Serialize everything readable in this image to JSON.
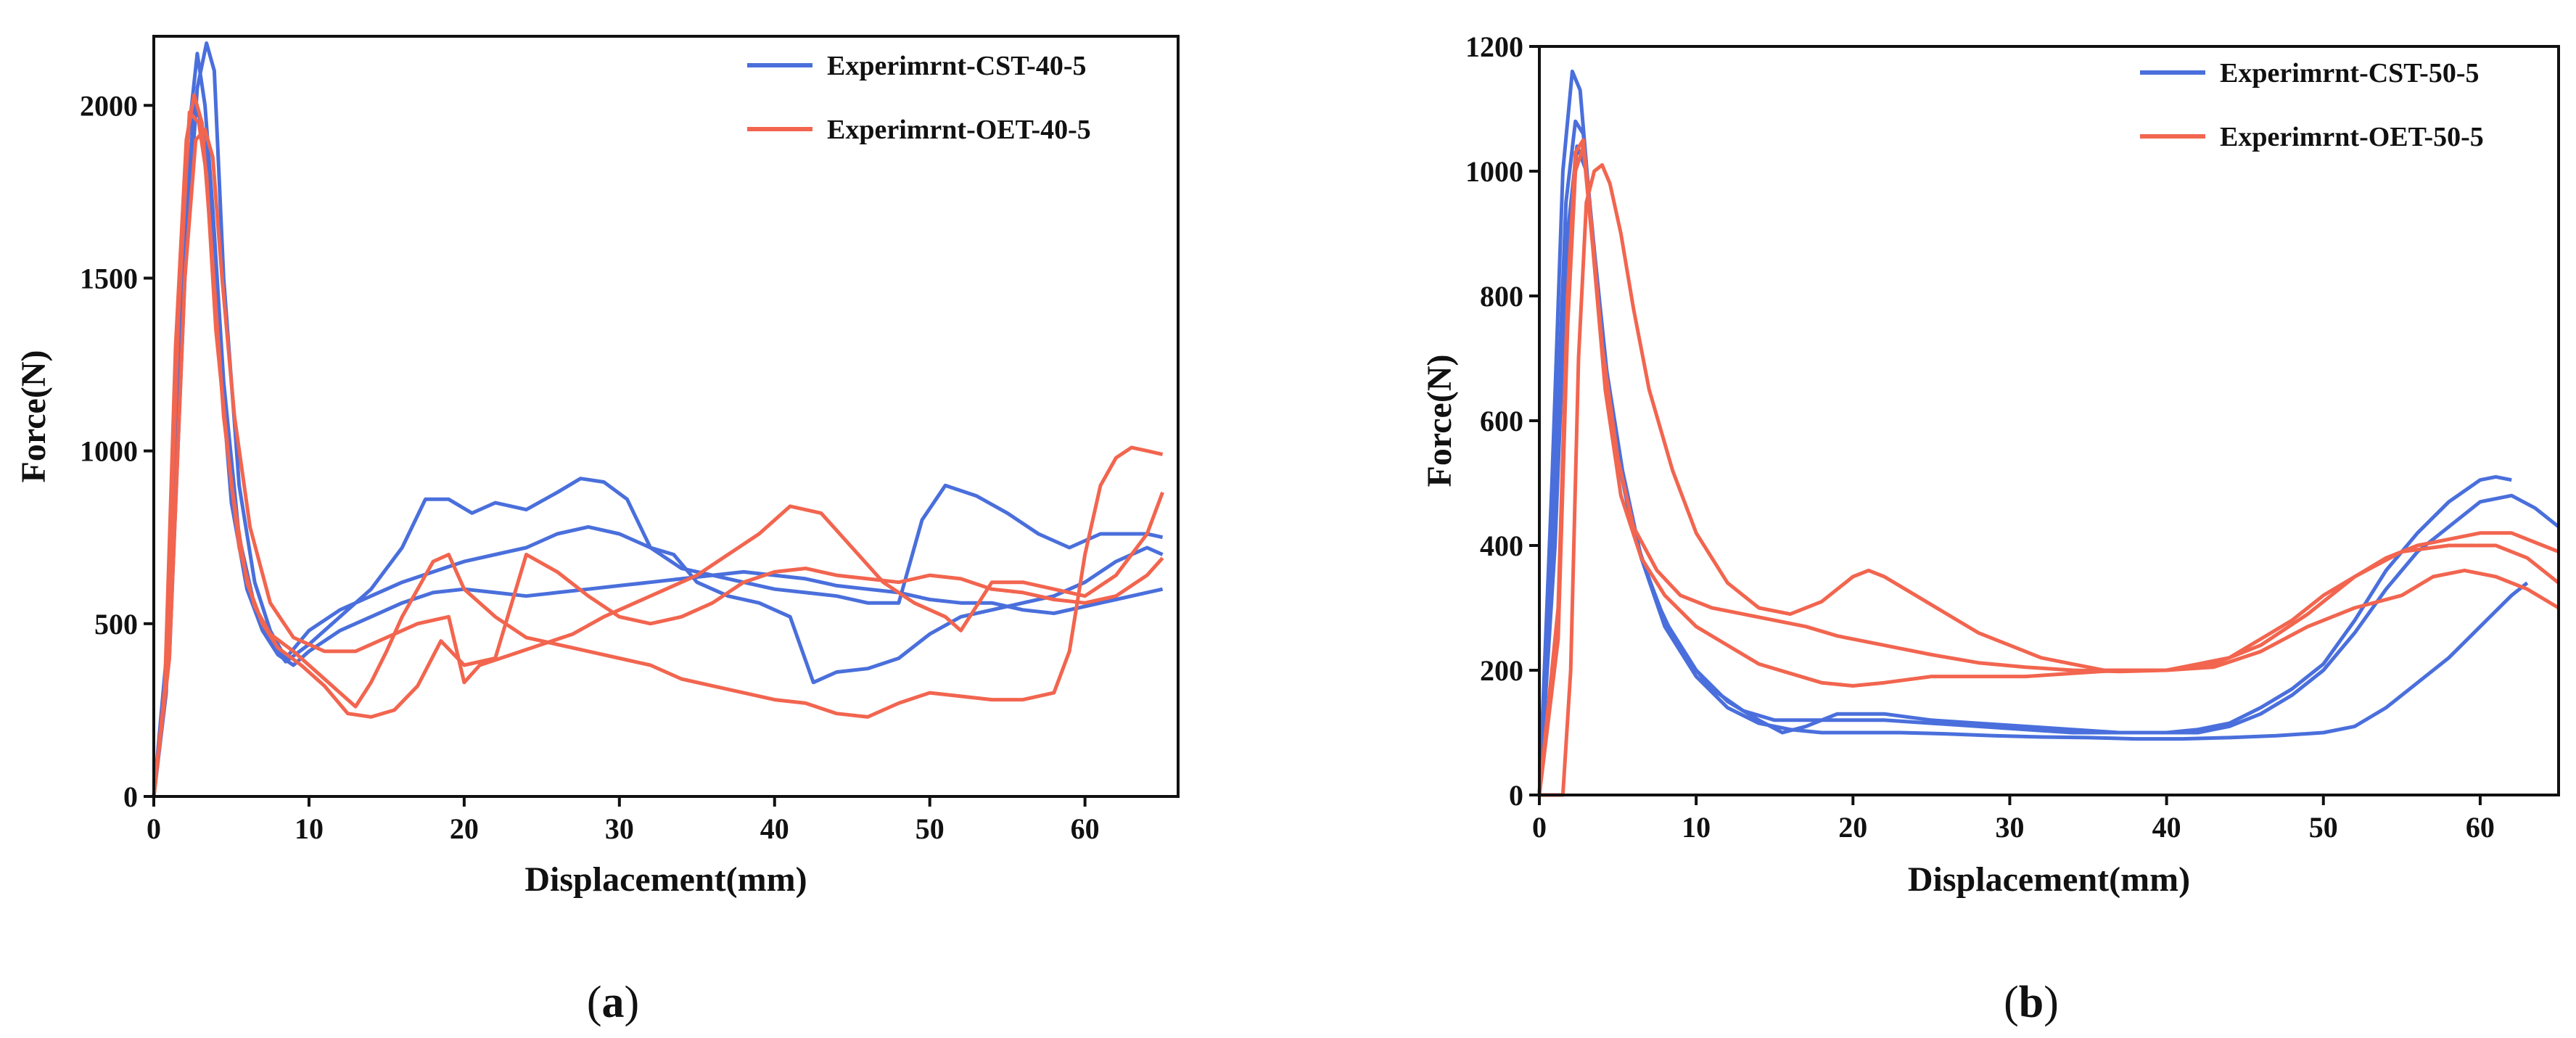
{
  "chart_data": [
    {
      "type": "line",
      "caption": "a",
      "xlabel": "Displacement(mm)",
      "ylabel": "Force(N)",
      "xlim": [
        0,
        66
      ],
      "ylim": [
        0,
        2200
      ],
      "xticks": [
        0,
        10,
        20,
        30,
        40,
        50,
        60
      ],
      "yticks": [
        0,
        500,
        1000,
        1500,
        2000
      ],
      "legend": "top-right",
      "legend_entries": [
        {
          "name": "Experimrnt-CST-40-5",
          "color": "#4a6fdc"
        },
        {
          "name": "Experimrnt-OET-40-5",
          "color": "#f2654f"
        }
      ],
      "series": [
        {
          "group": 0,
          "color": "#4a6fdc",
          "x": [
            0,
            0.8,
            1.5,
            2.2,
            2.8,
            3.3,
            3.8,
            4.5,
            5.5,
            6.5,
            7.5,
            8.5,
            10,
            12,
            14,
            16,
            17.5,
            19,
            20.5,
            22,
            24,
            26,
            27.5,
            29,
            30.5,
            32,
            33.5,
            35,
            37,
            39,
            41,
            42.5,
            44,
            46,
            48,
            50,
            52,
            54,
            56,
            58,
            60,
            62,
            64,
            65
          ],
          "y": [
            0,
            300,
            1200,
            1900,
            2150,
            2000,
            1700,
            1200,
            750,
            550,
            450,
            390,
            440,
            520,
            600,
            720,
            860,
            860,
            820,
            850,
            830,
            880,
            920,
            910,
            860,
            720,
            700,
            620,
            580,
            560,
            520,
            330,
            360,
            370,
            400,
            470,
            520,
            540,
            560,
            580,
            620,
            680,
            720,
            700
          ]
        },
        {
          "group": 0,
          "color": "#4a6fdc",
          "x": [
            0,
            1,
            2,
            2.8,
            3.4,
            3.9,
            4.5,
            5.5,
            6.5,
            7.5,
            8.5,
            10,
            12,
            14,
            16,
            18,
            20,
            22,
            24,
            26,
            28,
            30,
            32,
            34,
            36,
            38,
            40,
            42,
            44,
            46,
            48,
            49.5,
            51,
            53,
            55,
            57,
            59,
            61,
            63,
            64,
            65
          ],
          "y": [
            0,
            400,
            1500,
            2050,
            2180,
            2100,
            1500,
            900,
            620,
            480,
            400,
            480,
            540,
            580,
            620,
            650,
            680,
            700,
            720,
            760,
            780,
            760,
            720,
            660,
            640,
            620,
            600,
            590,
            580,
            560,
            560,
            800,
            900,
            870,
            820,
            760,
            720,
            760,
            760,
            760,
            750
          ]
        },
        {
          "group": 0,
          "color": "#4a6fdc",
          "x": [
            0,
            1,
            2,
            2.6,
            3.1,
            3.6,
            4.2,
            5,
            6,
            7,
            8,
            9,
            10,
            12,
            14,
            16,
            18,
            20,
            22,
            24,
            26,
            28,
            30,
            32,
            34,
            36,
            38,
            40,
            42,
            44,
            46,
            48,
            50,
            52,
            54,
            56,
            58,
            60,
            62,
            64,
            65
          ],
          "y": [
            0,
            500,
            1600,
            2000,
            1950,
            1750,
            1300,
            850,
            600,
            480,
            410,
            380,
            420,
            480,
            520,
            560,
            590,
            600,
            590,
            580,
            590,
            600,
            610,
            620,
            630,
            640,
            650,
            640,
            630,
            610,
            600,
            590,
            570,
            560,
            560,
            540,
            530,
            550,
            570,
            590,
            600
          ]
        },
        {
          "group": 0,
          "color": "#f2654f",
          "x": [
            0,
            0.7,
            1.4,
            2.1,
            2.6,
            3.1,
            3.7,
            4.5,
            5.5,
            6.5,
            7.5,
            9,
            10.5,
            12,
            13,
            14,
            15,
            16,
            17,
            18,
            19,
            20,
            22,
            24,
            26,
            28,
            30,
            32,
            34,
            36,
            38,
            40,
            42,
            44,
            46,
            48,
            50,
            52,
            54,
            56,
            58,
            59,
            60,
            61,
            62,
            63,
            64,
            65
          ],
          "y": [
            0,
            300,
            1300,
            1900,
            2030,
            1950,
            1600,
            1100,
            720,
            550,
            470,
            420,
            360,
            300,
            260,
            330,
            420,
            520,
            600,
            680,
            700,
            600,
            520,
            460,
            440,
            420,
            400,
            380,
            340,
            320,
            300,
            280,
            270,
            240,
            230,
            270,
            300,
            290,
            280,
            280,
            300,
            420,
            700,
            900,
            980,
            1010,
            1000,
            990
          ]
        },
        {
          "group": 0,
          "color": "#f2654f",
          "x": [
            0,
            0.8,
            1.6,
            2.3,
            2.9,
            3.4,
            4,
            5,
            6,
            7,
            8,
            9.5,
            11,
            12.5,
            14,
            15.5,
            17,
            18.5,
            20,
            22,
            24,
            26,
            28,
            30,
            32,
            34,
            36,
            38,
            40,
            42,
            44,
            46,
            48,
            50,
            52,
            54,
            56,
            58,
            60,
            62,
            64,
            65
          ],
          "y": [
            0,
            350,
            1400,
            1980,
            1950,
            1800,
            1350,
            900,
            620,
            500,
            430,
            380,
            320,
            240,
            230,
            250,
            320,
            450,
            380,
            400,
            700,
            650,
            580,
            520,
            500,
            520,
            560,
            620,
            650,
            660,
            640,
            630,
            620,
            640,
            630,
            600,
            590,
            570,
            560,
            580,
            640,
            690
          ]
        },
        {
          "group": 0,
          "color": "#f2654f",
          "x": [
            0,
            1,
            2,
            2.7,
            3.3,
            3.8,
            4.4,
            5.2,
            6.2,
            7.5,
            9,
            11,
            13,
            15,
            17,
            19,
            20,
            21,
            23,
            25,
            27,
            29,
            31,
            33,
            35,
            37,
            39,
            41,
            43,
            45,
            47,
            49,
            51,
            52,
            54,
            56,
            58,
            60,
            62,
            64,
            65
          ],
          "y": [
            0,
            400,
            1500,
            1900,
            1930,
            1850,
            1500,
            1100,
            780,
            560,
            460,
            420,
            420,
            460,
            500,
            520,
            330,
            380,
            410,
            440,
            470,
            520,
            560,
            600,
            640,
            700,
            760,
            840,
            820,
            720,
            620,
            560,
            520,
            480,
            620,
            620,
            600,
            580,
            640,
            760,
            880
          ]
        }
      ]
    },
    {
      "type": "line",
      "caption": "b",
      "xlabel": "Displacement(mm)",
      "ylabel": "Force(N)",
      "xlim": [
        0,
        65
      ],
      "ylim": [
        0,
        1200
      ],
      "xticks": [
        0,
        10,
        20,
        30,
        40,
        50,
        60
      ],
      "yticks": [
        0,
        200,
        400,
        600,
        800,
        1000,
        1200
      ],
      "legend": "top-right",
      "legend_entries": [
        {
          "name": "Experimrnt-CST-50-5",
          "color": "#4a6fdc"
        },
        {
          "name": "Experimrnt-OET-50-5",
          "color": "#f2654f"
        }
      ],
      "series": [
        {
          "group": 1,
          "color": "#4a6fdc",
          "x": [
            0,
            0.8,
            1.5,
            2.1,
            2.6,
            3.1,
            3.7,
            4.5,
            5.5,
            6.5,
            8,
            10,
            12,
            14,
            15.5,
            17,
            19,
            22,
            25,
            28,
            31,
            34,
            37,
            40,
            42,
            44,
            46,
            48,
            50,
            52,
            54,
            56,
            58,
            60,
            61,
            62
          ],
          "y": [
            0,
            500,
            1000,
            1160,
            1130,
            980,
            800,
            620,
            480,
            380,
            280,
            200,
            150,
            120,
            100,
            110,
            130,
            130,
            120,
            115,
            110,
            105,
            100,
            100,
            105,
            115,
            140,
            170,
            210,
            280,
            360,
            420,
            470,
            505,
            510,
            505
          ]
        },
        {
          "group": 1,
          "color": "#4a6fdc",
          "x": [
            0,
            0.9,
            1.7,
            2.3,
            2.8,
            3.4,
            4,
            5,
            6,
            7.5,
            9,
            11,
            13,
            15,
            17,
            19,
            22,
            25,
            28,
            31,
            34,
            37,
            40,
            42,
            44,
            46,
            48,
            50,
            52,
            54,
            56,
            58,
            60,
            62,
            63.5,
            65
          ],
          "y": [
            0,
            450,
            950,
            1080,
            1060,
            900,
            720,
            540,
            420,
            310,
            230,
            170,
            135,
            120,
            120,
            120,
            120,
            115,
            110,
            105,
            100,
            100,
            100,
            100,
            110,
            130,
            160,
            200,
            260,
            330,
            390,
            430,
            470,
            480,
            460,
            430
          ]
        },
        {
          "group": 1,
          "color": "#4a6fdc",
          "x": [
            0,
            1,
            1.8,
            2.4,
            3,
            3.6,
            4.3,
            5.3,
            6.5,
            8,
            10,
            12,
            14,
            16,
            18,
            20,
            23,
            26,
            29,
            32,
            35,
            38,
            41,
            44,
            47,
            50,
            52,
            54,
            56,
            58,
            60,
            62,
            63
          ],
          "y": [
            0,
            400,
            900,
            1040,
            1000,
            850,
            680,
            520,
            380,
            270,
            190,
            140,
            115,
            105,
            100,
            100,
            100,
            98,
            95,
            93,
            92,
            90,
            90,
            92,
            95,
            100,
            110,
            140,
            180,
            220,
            270,
            320,
            340
          ]
        },
        {
          "group": 1,
          "color": "#f2654f",
          "x": [
            0,
            1.5,
            2,
            2.5,
            3,
            3.5,
            4,
            4.5,
            5.2,
            6,
            7,
            8.5,
            10,
            12,
            14,
            16,
            18,
            20,
            21,
            22,
            24,
            26,
            28,
            30,
            32,
            34,
            36,
            38,
            40,
            42,
            44,
            46,
            48,
            50,
            52,
            54,
            56,
            58,
            60,
            62,
            64,
            65
          ],
          "y": [
            0,
            0,
            200,
            700,
            950,
            1000,
            1010,
            980,
            900,
            780,
            650,
            520,
            420,
            340,
            300,
            290,
            310,
            350,
            360,
            350,
            320,
            290,
            260,
            240,
            220,
            210,
            200,
            200,
            200,
            210,
            220,
            250,
            280,
            320,
            350,
            380,
            400,
            410,
            420,
            420,
            400,
            390
          ]
        },
        {
          "group": 1,
          "color": "#f2654f",
          "x": [
            0,
            1.2,
            1.8,
            2.3,
            2.8,
            3.3,
            4,
            5,
            6,
            7.5,
            9,
            11,
            13,
            15,
            17,
            19,
            22,
            25,
            28,
            31,
            34,
            37,
            40,
            43,
            46,
            49,
            52,
            55,
            58,
            61,
            63,
            65
          ],
          "y": [
            0,
            300,
            800,
            1030,
            1050,
            920,
            720,
            540,
            430,
            360,
            320,
            300,
            290,
            280,
            270,
            255,
            240,
            225,
            212,
            205,
            200,
            198,
            200,
            210,
            240,
            290,
            350,
            390,
            400,
            400,
            380,
            340
          ]
        },
        {
          "group": 1,
          "color": "#f2654f",
          "x": [
            0,
            1.2,
            1.8,
            2.3,
            2.8,
            3.4,
            4.2,
            5.2,
            6.5,
            8,
            10,
            12,
            14,
            16,
            18,
            20,
            22,
            25,
            28,
            31,
            34,
            37,
            40,
            43,
            46,
            49,
            52,
            55,
            57,
            59,
            61,
            63,
            65
          ],
          "y": [
            0,
            250,
            750,
            1000,
            1040,
            880,
            650,
            480,
            380,
            320,
            270,
            240,
            210,
            195,
            180,
            175,
            180,
            190,
            190,
            190,
            195,
            200,
            200,
            205,
            230,
            270,
            300,
            320,
            350,
            360,
            350,
            330,
            300
          ]
        }
      ]
    }
  ]
}
